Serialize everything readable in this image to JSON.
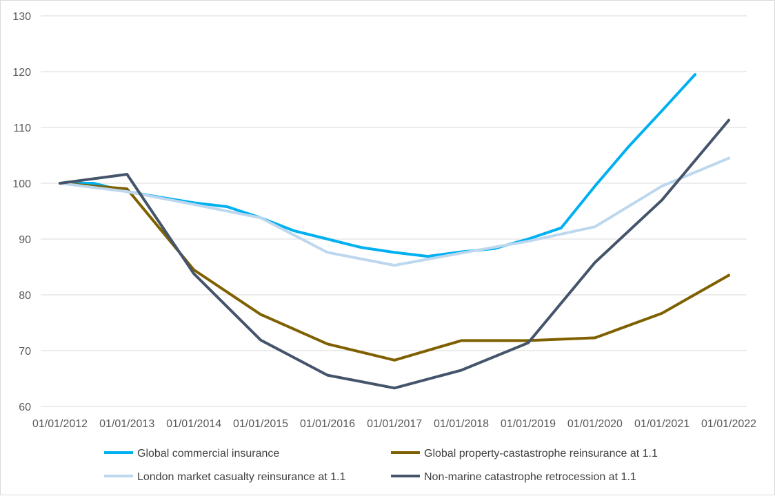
{
  "chart_data": {
    "type": "line",
    "title": "",
    "xlabel": "",
    "ylabel": "",
    "ylim": [
      60,
      130
    ],
    "yticks": [
      60,
      70,
      80,
      90,
      100,
      110,
      120,
      130
    ],
    "xlim": [
      "01/01/2012",
      "01/01/2022"
    ],
    "xticks": [
      "01/01/2012",
      "01/01/2013",
      "01/01/2014",
      "01/01/2015",
      "01/01/2016",
      "01/01/2017",
      "01/01/2018",
      "01/01/2019",
      "01/01/2020",
      "01/01/2021",
      "01/01/2022"
    ],
    "grid": "horizontal",
    "legend_position": "bottom",
    "series": [
      {
        "name": "Global commercial insurance",
        "color": "#00b0f0",
        "points": [
          [
            "01/01/2012",
            100
          ],
          [
            "01/07/2012",
            100
          ],
          [
            "01/01/2013",
            98.5
          ],
          [
            "01/07/2013",
            97.5
          ],
          [
            "01/01/2014",
            96.5
          ],
          [
            "01/07/2014",
            95.8
          ],
          [
            "01/01/2015",
            93.8
          ],
          [
            "01/07/2015",
            91.5
          ],
          [
            "01/01/2016",
            90
          ],
          [
            "01/07/2016",
            88.5
          ],
          [
            "01/01/2017",
            87.6
          ],
          [
            "01/07/2017",
            86.9
          ],
          [
            "01/01/2018",
            87.7
          ],
          [
            "01/07/2018",
            88.3
          ],
          [
            "01/01/2019",
            90
          ],
          [
            "01/07/2019",
            92
          ],
          [
            "01/01/2020",
            99.5
          ],
          [
            "01/07/2020",
            106.5
          ],
          [
            "01/01/2021",
            113
          ],
          [
            "01/07/2021",
            119.5
          ]
        ]
      },
      {
        "name": "Global property-castastrophe reinsurance at 1.1",
        "color": "#7f6000",
        "points": [
          [
            "01/01/2012",
            100
          ],
          [
            "01/01/2013",
            99
          ],
          [
            "01/01/2014",
            84.5
          ],
          [
            "01/01/2015",
            76.5
          ],
          [
            "01/01/2016",
            71.2
          ],
          [
            "01/01/2017",
            68.3
          ],
          [
            "01/01/2018",
            71.8
          ],
          [
            "01/01/2019",
            71.8
          ],
          [
            "01/01/2020",
            72.3
          ],
          [
            "01/01/2021",
            76.7
          ],
          [
            "01/01/2022",
            83.5
          ]
        ]
      },
      {
        "name": "London market casualty reinsurance at 1.1",
        "color": "#bdd7ee",
        "points": [
          [
            "01/01/2012",
            100
          ],
          [
            "01/01/2013",
            98.5
          ],
          [
            "01/01/2014",
            96.2
          ],
          [
            "01/01/2015",
            93.8
          ],
          [
            "01/01/2016",
            87.6
          ],
          [
            "01/01/2017",
            85.3
          ],
          [
            "01/01/2018",
            87.5
          ],
          [
            "01/01/2019",
            89.6
          ],
          [
            "01/01/2020",
            92.2
          ],
          [
            "01/01/2021",
            99.5
          ],
          [
            "01/01/2022",
            104.5
          ]
        ]
      },
      {
        "name": "Non-marine catastrophe retrocession at 1.1",
        "color": "#44546a",
        "points": [
          [
            "01/01/2012",
            100
          ],
          [
            "01/01/2013",
            101.6
          ],
          [
            "01/01/2014",
            83.8
          ],
          [
            "01/01/2015",
            71.9
          ],
          [
            "01/01/2016",
            65.6
          ],
          [
            "01/01/2017",
            63.3
          ],
          [
            "01/01/2018",
            66.5
          ],
          [
            "01/01/2019",
            71.4
          ],
          [
            "01/01/2020",
            85.8
          ],
          [
            "01/01/2021",
            97
          ],
          [
            "01/01/2022",
            111.3
          ]
        ]
      }
    ]
  }
}
